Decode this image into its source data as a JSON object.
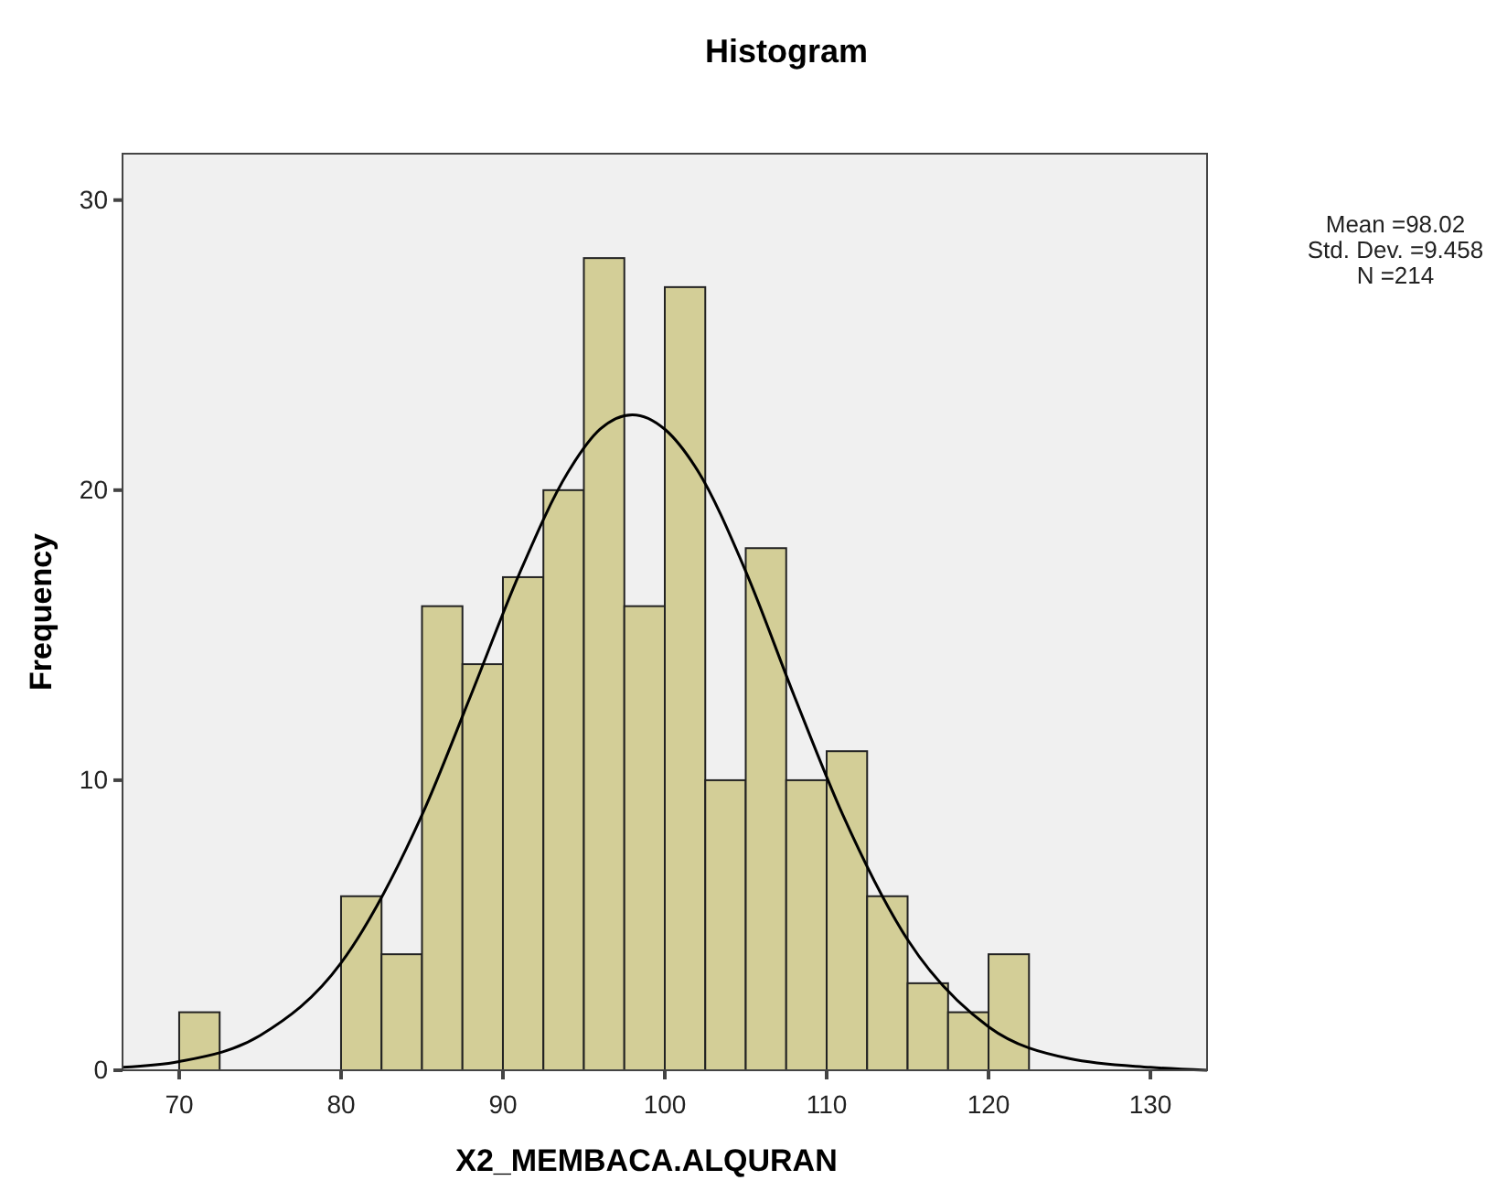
{
  "chart_data": {
    "type": "histogram",
    "title": "Histogram",
    "xlabel": "X2_MEMBACA.ALQURAN",
    "ylabel": "Frequency",
    "bins": [
      70,
      72.5,
      75,
      77.5,
      80,
      82.5,
      85,
      87.5,
      90,
      92.5,
      95,
      97.5,
      100,
      102.5,
      105,
      107.5,
      110,
      112.5,
      115,
      117.5,
      120,
      122.5
    ],
    "values": [
      2,
      0,
      0,
      0,
      6,
      4,
      16,
      14,
      17,
      20,
      28,
      16,
      27,
      10,
      18,
      10,
      11,
      6,
      3,
      2,
      4
    ],
    "color": "#d3ce97",
    "series": [
      {
        "type": "line",
        "color": "#000000",
        "x": [
          66.5,
          70,
          75,
          80,
          85,
          88,
          91,
          94,
          96,
          98,
          100,
          102,
          105,
          108,
          111,
          115,
          120,
          125,
          130,
          133.5
        ],
        "values": [
          0.1,
          0.3,
          1.2,
          3.7,
          8.8,
          12.9,
          17.1,
          20.6,
          22.1,
          22.6,
          22.1,
          20.7,
          17.2,
          12.9,
          8.8,
          4.5,
          1.5,
          0.4,
          0.1,
          0.0
        ]
      }
    ],
    "xlim": [
      66.5,
      133.5
    ],
    "xticks": [
      70,
      80,
      90,
      100,
      110,
      120,
      130
    ],
    "ylim": [
      0,
      31.6
    ],
    "yticks": [
      0,
      10,
      20,
      30
    ],
    "grid": false,
    "annotations": [
      "Mean =98.02",
      "Std. Dev. =9.458",
      "N =214"
    ]
  }
}
